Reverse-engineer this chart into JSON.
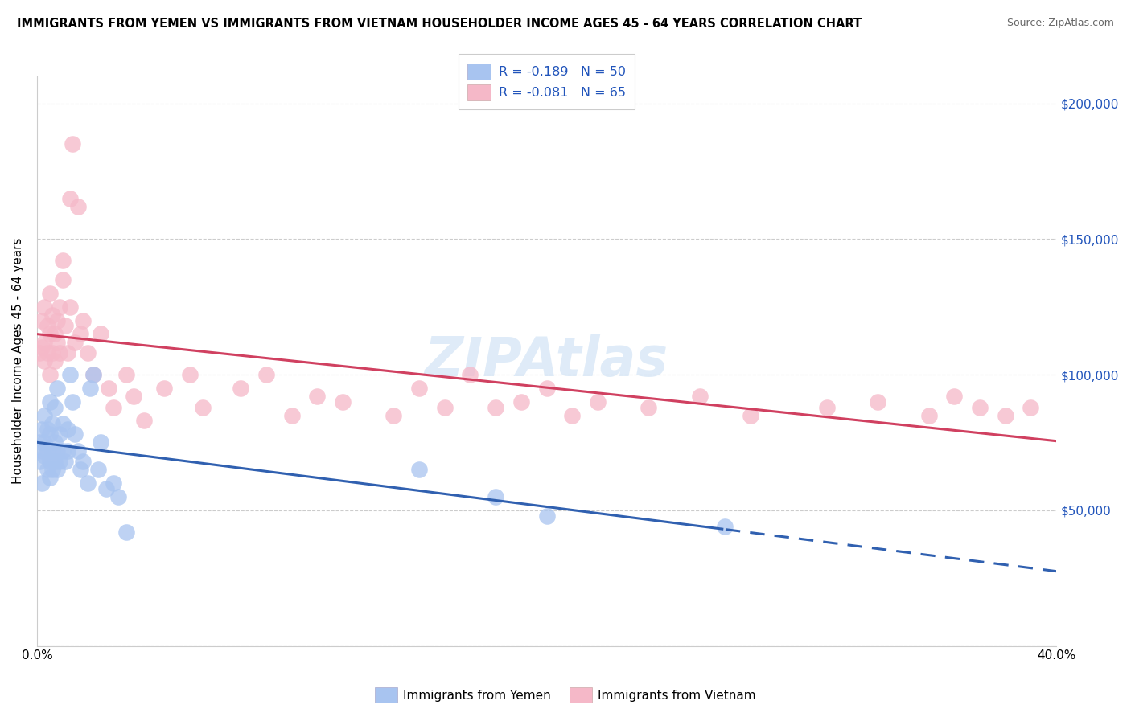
{
  "title": "IMMIGRANTS FROM YEMEN VS IMMIGRANTS FROM VIETNAM HOUSEHOLDER INCOME AGES 45 - 64 YEARS CORRELATION CHART",
  "source": "Source: ZipAtlas.com",
  "ylabel": "Householder Income Ages 45 - 64 years",
  "xlim": [
    0.0,
    0.4
  ],
  "ylim": [
    0,
    210000
  ],
  "yemen_color": "#a8c4f0",
  "vietnam_color": "#f5b8c8",
  "trend_yemen_color": "#3060b0",
  "trend_vietnam_color": "#d04060",
  "watermark": "ZIPAtlas",
  "yemen_R": -0.189,
  "yemen_N": 50,
  "vietnam_R": -0.081,
  "vietnam_N": 65,
  "yemen_x": [
    0.001,
    0.001,
    0.002,
    0.002,
    0.002,
    0.003,
    0.003,
    0.003,
    0.004,
    0.004,
    0.004,
    0.005,
    0.005,
    0.005,
    0.005,
    0.006,
    0.006,
    0.006,
    0.007,
    0.007,
    0.007,
    0.008,
    0.008,
    0.008,
    0.009,
    0.009,
    0.01,
    0.01,
    0.011,
    0.012,
    0.012,
    0.013,
    0.014,
    0.015,
    0.016,
    0.017,
    0.018,
    0.02,
    0.021,
    0.022,
    0.024,
    0.025,
    0.027,
    0.03,
    0.032,
    0.035,
    0.15,
    0.18,
    0.2,
    0.27
  ],
  "yemen_y": [
    68000,
    75000,
    72000,
    80000,
    60000,
    70000,
    75000,
    85000,
    65000,
    72000,
    80000,
    62000,
    68000,
    78000,
    90000,
    65000,
    72000,
    82000,
    68000,
    75000,
    88000,
    65000,
    72000,
    95000,
    68000,
    78000,
    72000,
    82000,
    68000,
    72000,
    80000,
    100000,
    90000,
    78000,
    72000,
    65000,
    68000,
    60000,
    95000,
    100000,
    65000,
    75000,
    58000,
    60000,
    55000,
    42000,
    65000,
    55000,
    48000,
    44000
  ],
  "vietnam_x": [
    0.001,
    0.002,
    0.002,
    0.003,
    0.003,
    0.003,
    0.004,
    0.004,
    0.005,
    0.005,
    0.005,
    0.006,
    0.006,
    0.007,
    0.007,
    0.008,
    0.008,
    0.009,
    0.009,
    0.01,
    0.01,
    0.011,
    0.012,
    0.013,
    0.013,
    0.014,
    0.015,
    0.016,
    0.017,
    0.018,
    0.02,
    0.022,
    0.025,
    0.028,
    0.03,
    0.035,
    0.038,
    0.042,
    0.05,
    0.06,
    0.065,
    0.08,
    0.09,
    0.1,
    0.11,
    0.12,
    0.14,
    0.15,
    0.16,
    0.17,
    0.18,
    0.19,
    0.2,
    0.21,
    0.22,
    0.24,
    0.26,
    0.28,
    0.31,
    0.33,
    0.35,
    0.36,
    0.37,
    0.38,
    0.39
  ],
  "vietnam_y": [
    108000,
    110000,
    120000,
    105000,
    112000,
    125000,
    108000,
    118000,
    100000,
    115000,
    130000,
    108000,
    122000,
    105000,
    115000,
    120000,
    112000,
    125000,
    108000,
    135000,
    142000,
    118000,
    108000,
    165000,
    125000,
    185000,
    112000,
    162000,
    115000,
    120000,
    108000,
    100000,
    115000,
    95000,
    88000,
    100000,
    92000,
    83000,
    95000,
    100000,
    88000,
    95000,
    100000,
    85000,
    92000,
    90000,
    85000,
    95000,
    88000,
    100000,
    88000,
    90000,
    95000,
    85000,
    90000,
    88000,
    92000,
    85000,
    88000,
    90000,
    85000,
    92000,
    88000,
    85000,
    88000
  ]
}
